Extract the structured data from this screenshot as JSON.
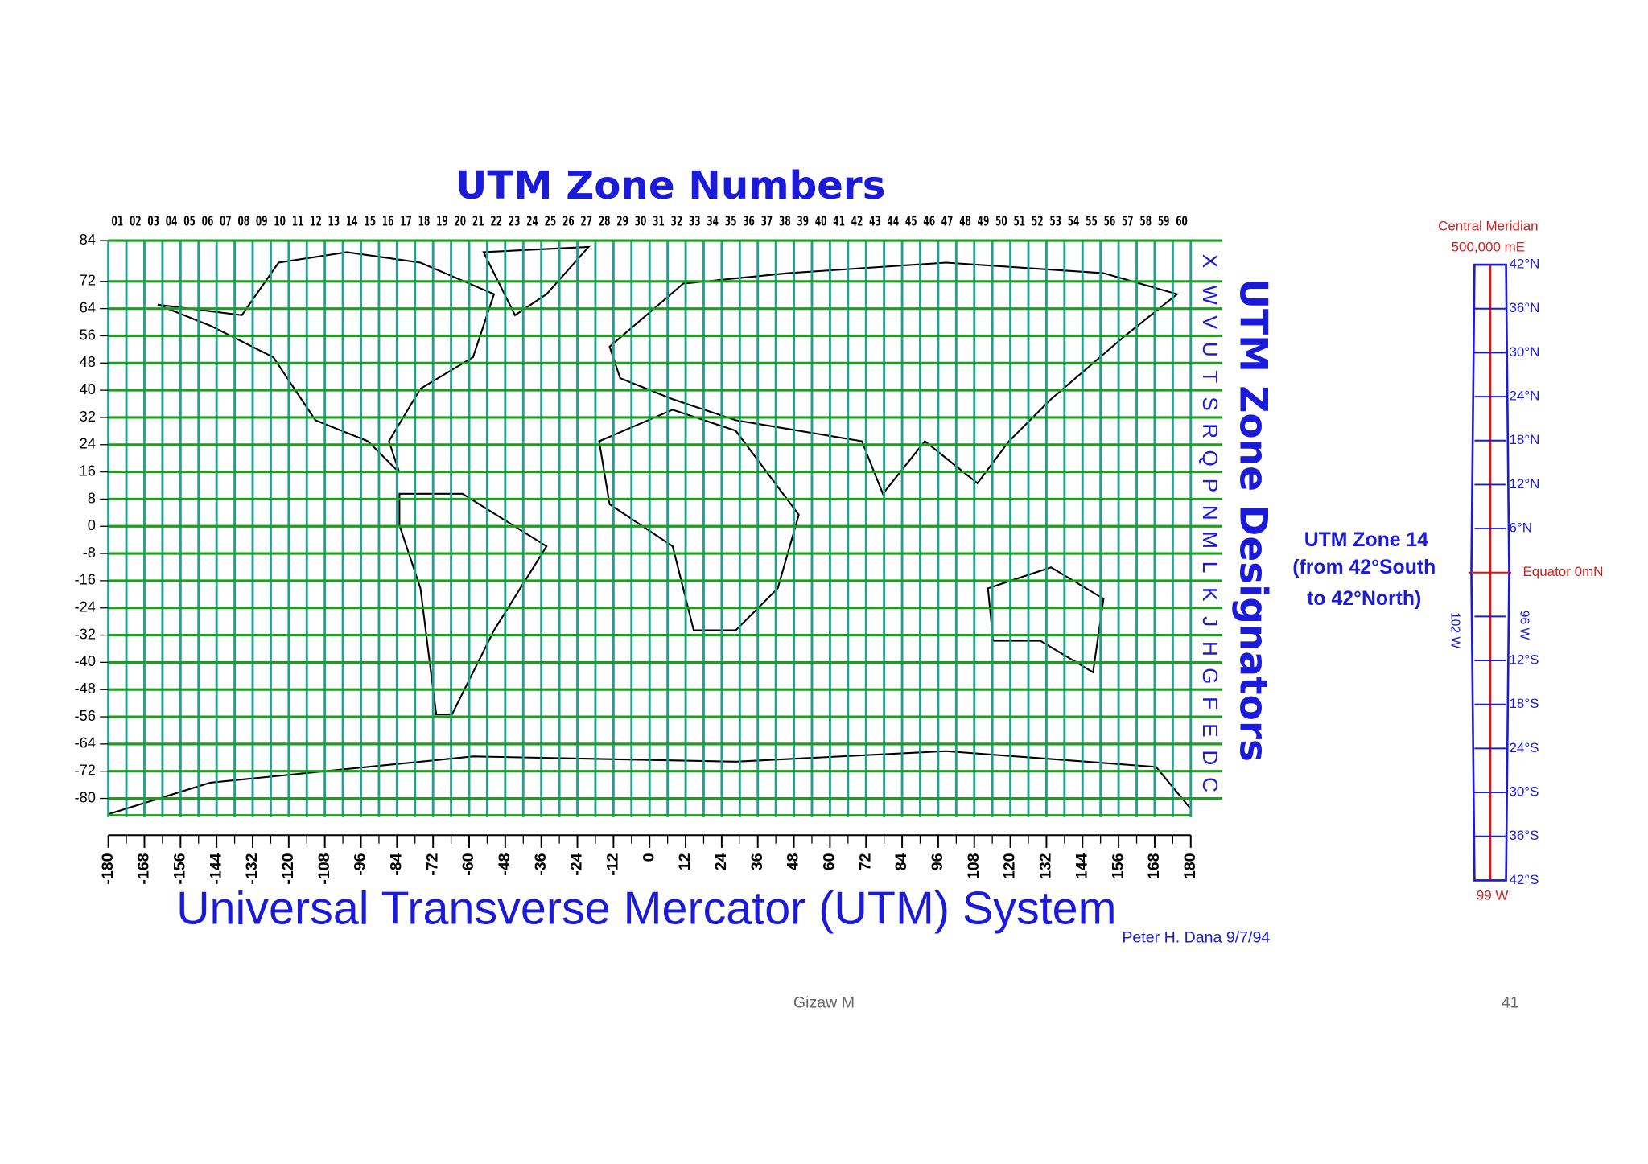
{
  "title": "UTM Zone Numbers",
  "zone_numbers": [
    "01",
    "02",
    "03",
    "04",
    "05",
    "06",
    "07",
    "08",
    "09",
    "10",
    "11",
    "12",
    "13",
    "14",
    "15",
    "16",
    "17",
    "18",
    "19",
    "20",
    "21",
    "22",
    "23",
    "24",
    "25",
    "26",
    "27",
    "28",
    "29",
    "30",
    "31",
    "32",
    "33",
    "34",
    "35",
    "36",
    "37",
    "38",
    "39",
    "40",
    "41",
    "42",
    "43",
    "44",
    "45",
    "46",
    "47",
    "48",
    "49",
    "50",
    "51",
    "52",
    "53",
    "54",
    "55",
    "56",
    "57",
    "58",
    "59",
    "60"
  ],
  "latitudes": [
    84,
    72,
    64,
    56,
    48,
    40,
    32,
    24,
    16,
    8,
    0,
    -8,
    -16,
    -24,
    -32,
    -40,
    -48,
    -56,
    -64,
    -72,
    -80
  ],
  "longitudes": [
    -180,
    -168,
    -156,
    -144,
    -132,
    -120,
    -108,
    -96,
    -84,
    -72,
    -60,
    -48,
    -36,
    -24,
    -12,
    0,
    12,
    24,
    36,
    48,
    60,
    72,
    84,
    96,
    108,
    120,
    132,
    144,
    156,
    168,
    180
  ],
  "designators": [
    "X",
    "W",
    "V",
    "U",
    "T",
    "S",
    "R",
    "Q",
    "P",
    "N",
    "M",
    "L",
    "K",
    "J",
    "H",
    "G",
    "F",
    "E",
    "D",
    "C"
  ],
  "designators_title": "UTM Zone Designators",
  "system_title": "Universal Transverse Mercator (UTM) System",
  "credit": "Peter H. Dana 9/7/94",
  "inset": {
    "heading": [
      "Central Meridian",
      "500,000 mE"
    ],
    "zone_text": [
      "UTM Zone 14",
      "(from 42°South",
      "to 42°North)"
    ],
    "lat_labels": [
      "42°N",
      "36°N",
      "30°N",
      "24°N",
      "18°N",
      "12°N",
      "6°N",
      "Equator 0mN",
      "",
      "12°S",
      "18°S",
      "24°S",
      "30°S",
      "36°S",
      "42°S"
    ],
    "west_edge": "102 W",
    "east_edge": "96 W",
    "meridian": "99 W"
  },
  "footer": {
    "author": "Gizaw M",
    "page": "41"
  }
}
